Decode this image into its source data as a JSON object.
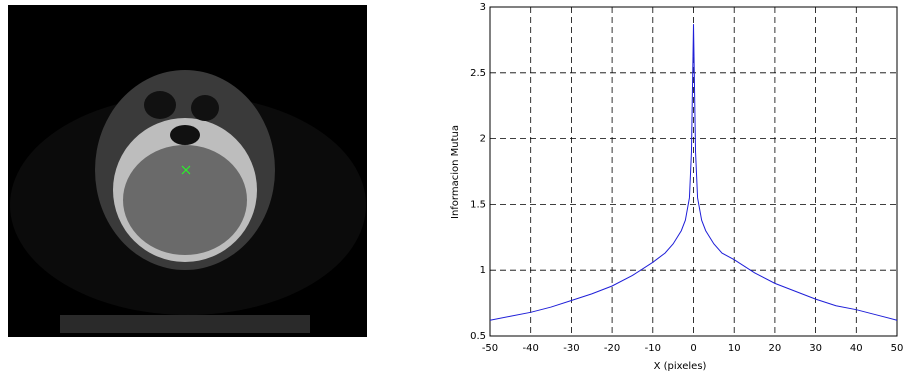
{
  "chart_data": {
    "type": "line",
    "xlabel": "X (pixeles)",
    "ylabel": "Informacion Mutua",
    "x": [
      -50,
      -45,
      -40,
      -35,
      -30,
      -25,
      -20,
      -15,
      -10,
      -7,
      -5,
      -3,
      -2,
      -1,
      -0.5,
      0,
      0.5,
      1,
      2,
      3,
      5,
      7,
      10,
      15,
      20,
      25,
      30,
      35,
      40,
      45,
      50
    ],
    "values": [
      0.62,
      0.65,
      0.68,
      0.72,
      0.77,
      0.82,
      0.88,
      0.96,
      1.06,
      1.13,
      1.2,
      1.3,
      1.38,
      1.55,
      1.9,
      2.87,
      1.9,
      1.55,
      1.38,
      1.3,
      1.2,
      1.13,
      1.08,
      0.98,
      0.9,
      0.84,
      0.78,
      0.73,
      0.7,
      0.66,
      0.62
    ],
    "color": "#1f1fd8",
    "xlim": [
      -50,
      50
    ],
    "xticks": [
      -50,
      -40,
      -30,
      -20,
      -10,
      0,
      10,
      20,
      30,
      40,
      50
    ],
    "ylim": [
      0.5,
      3
    ],
    "yticks": [
      0.5,
      1,
      1.5,
      2,
      2.5,
      3
    ],
    "grid": true
  }
}
